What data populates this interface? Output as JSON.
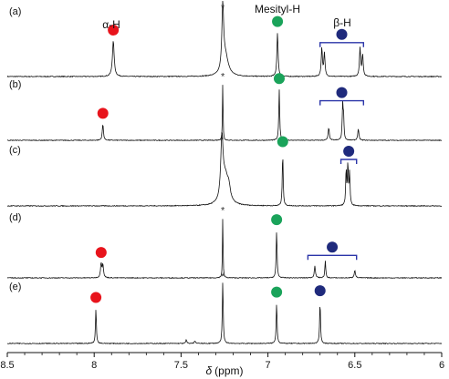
{
  "figure": {
    "panel_labels": [
      "(a)",
      "(b)",
      "(c)",
      "(d)",
      "(e)"
    ],
    "peak_labels": {
      "alpha": "α-H",
      "mesityl": "Mesityl-H",
      "beta": "β-H"
    },
    "solvent_marker": "*",
    "xaxis": {
      "symbol": "δ",
      "unit": "(ppm)"
    }
  },
  "colors": {
    "alpha": "#e8141c",
    "mesityl": "#1aa35a",
    "beta": "#1f2a7c",
    "bracket": "#2b35a8",
    "trace": "#111111"
  },
  "chart_data": {
    "type": "line",
    "xlabel": "δ (ppm)",
    "xlim": [
      8.5,
      6.0
    ],
    "x_reversed": true,
    "xticks": [
      8.5,
      8.0,
      7.5,
      7.0,
      6.5,
      6.0
    ],
    "xtick_labels": [
      "8.5",
      "8",
      "7.5",
      "7",
      "6.5",
      "6"
    ],
    "series": [
      {
        "label": "(a)",
        "peaks": [
          {
            "ppm": 7.26,
            "height": 0.9,
            "width": 0.006,
            "marker": "*"
          },
          {
            "ppm": 7.245,
            "height": 0.28,
            "width": 0.02
          },
          {
            "ppm": 7.89,
            "height": 0.5,
            "width": 0.006,
            "marker": "alpha"
          },
          {
            "ppm": 6.945,
            "height": 0.62,
            "width": 0.004,
            "marker": "mesityl"
          },
          {
            "ppm": 6.69,
            "height": 0.4,
            "width": 0.004
          },
          {
            "ppm": 6.675,
            "height": 0.32,
            "width": 0.004
          },
          {
            "ppm": 6.47,
            "height": 0.4,
            "width": 0.004
          },
          {
            "ppm": 6.455,
            "height": 0.3,
            "width": 0.004
          }
        ],
        "beta_bracket": [
          6.7,
          6.45
        ]
      },
      {
        "label": "(b)",
        "peaks": [
          {
            "ppm": 7.26,
            "height": 0.95,
            "width": 0.002,
            "marker": "*"
          },
          {
            "ppm": 7.95,
            "height": 0.26,
            "width": 0.004,
            "marker": "alpha"
          },
          {
            "ppm": 6.935,
            "height": 0.82,
            "width": 0.003,
            "marker": "mesityl"
          },
          {
            "ppm": 6.65,
            "height": 0.2,
            "width": 0.004
          },
          {
            "ppm": 6.57,
            "height": 0.55,
            "width": 0.003
          },
          {
            "ppm": 6.565,
            "height": 0.35,
            "width": 0.003
          },
          {
            "ppm": 6.48,
            "height": 0.18,
            "width": 0.004
          }
        ],
        "beta_bracket": [
          6.7,
          6.45
        ]
      },
      {
        "label": "(c)",
        "peaks": [
          {
            "ppm": 7.265,
            "height": 0.88,
            "width": 0.008,
            "marker": "*"
          },
          {
            "ppm": 7.245,
            "height": 0.4,
            "width": 0.02
          },
          {
            "ppm": 7.225,
            "height": 0.16,
            "width": 0.01
          },
          {
            "ppm": 6.915,
            "height": 0.78,
            "width": 0.003,
            "marker": "mesityl"
          },
          {
            "ppm": 6.55,
            "height": 0.52,
            "width": 0.003
          },
          {
            "ppm": 6.54,
            "height": 0.6,
            "width": 0.003
          },
          {
            "ppm": 6.53,
            "height": 0.48,
            "width": 0.003
          }
        ],
        "beta_bracket": [
          6.58,
          6.49
        ]
      },
      {
        "label": "(d)",
        "peaks": [
          {
            "ppm": 7.26,
            "height": 0.95,
            "width": 0.002,
            "marker": "*"
          },
          {
            "ppm": 7.96,
            "height": 0.22,
            "width": 0.004,
            "marker": "alpha"
          },
          {
            "ppm": 7.95,
            "height": 0.2,
            "width": 0.004
          },
          {
            "ppm": 6.95,
            "height": 0.72,
            "width": 0.003,
            "marker": "mesityl"
          },
          {
            "ppm": 6.73,
            "height": 0.18,
            "width": 0.004
          },
          {
            "ppm": 6.67,
            "height": 0.26,
            "width": 0.003
          },
          {
            "ppm": 6.5,
            "height": 0.12,
            "width": 0.004
          }
        ],
        "beta_bracket": [
          6.77,
          6.49
        ]
      },
      {
        "label": "(e)",
        "peaks": [
          {
            "ppm": 7.26,
            "height": 0.92,
            "width": 0.003,
            "marker": "*"
          },
          {
            "ppm": 7.99,
            "height": 0.52,
            "width": 0.003,
            "marker": "alpha"
          },
          {
            "ppm": 6.95,
            "height": 0.6,
            "width": 0.003,
            "marker": "mesityl"
          },
          {
            "ppm": 6.7,
            "height": 0.62,
            "width": 0.003,
            "marker": "beta"
          },
          {
            "ppm": 7.47,
            "height": 0.05,
            "width": 0.004
          },
          {
            "ppm": 7.42,
            "height": 0.04,
            "width": 0.004
          }
        ]
      }
    ]
  }
}
